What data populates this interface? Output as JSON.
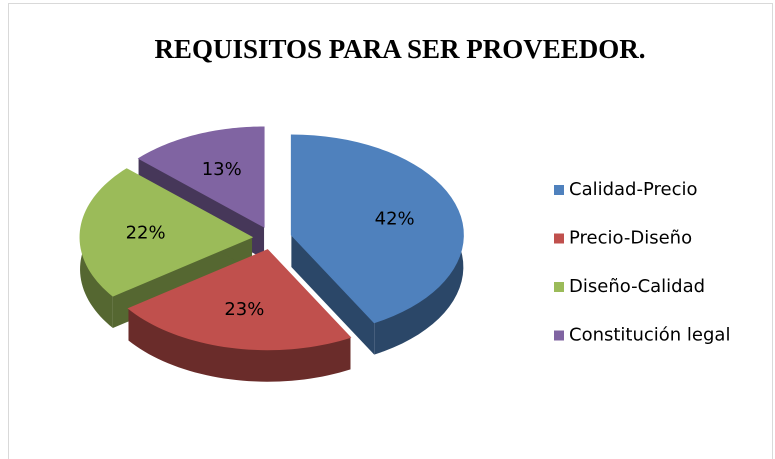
{
  "chart_data": {
    "type": "pie",
    "title": "REQUISITOS PARA SER PROVEEDOR.",
    "categories": [
      "Calidad-Precio",
      "Precio-Diseño",
      "Diseño-Calidad",
      "Constitución legal"
    ],
    "values": [
      42,
      23,
      22,
      13
    ],
    "value_labels": [
      "42%",
      "23%",
      "22%",
      "13%"
    ],
    "colors": [
      "#4f81bd",
      "#c0504d",
      "#9bbb59",
      "#8064a2"
    ],
    "legend": "right"
  }
}
